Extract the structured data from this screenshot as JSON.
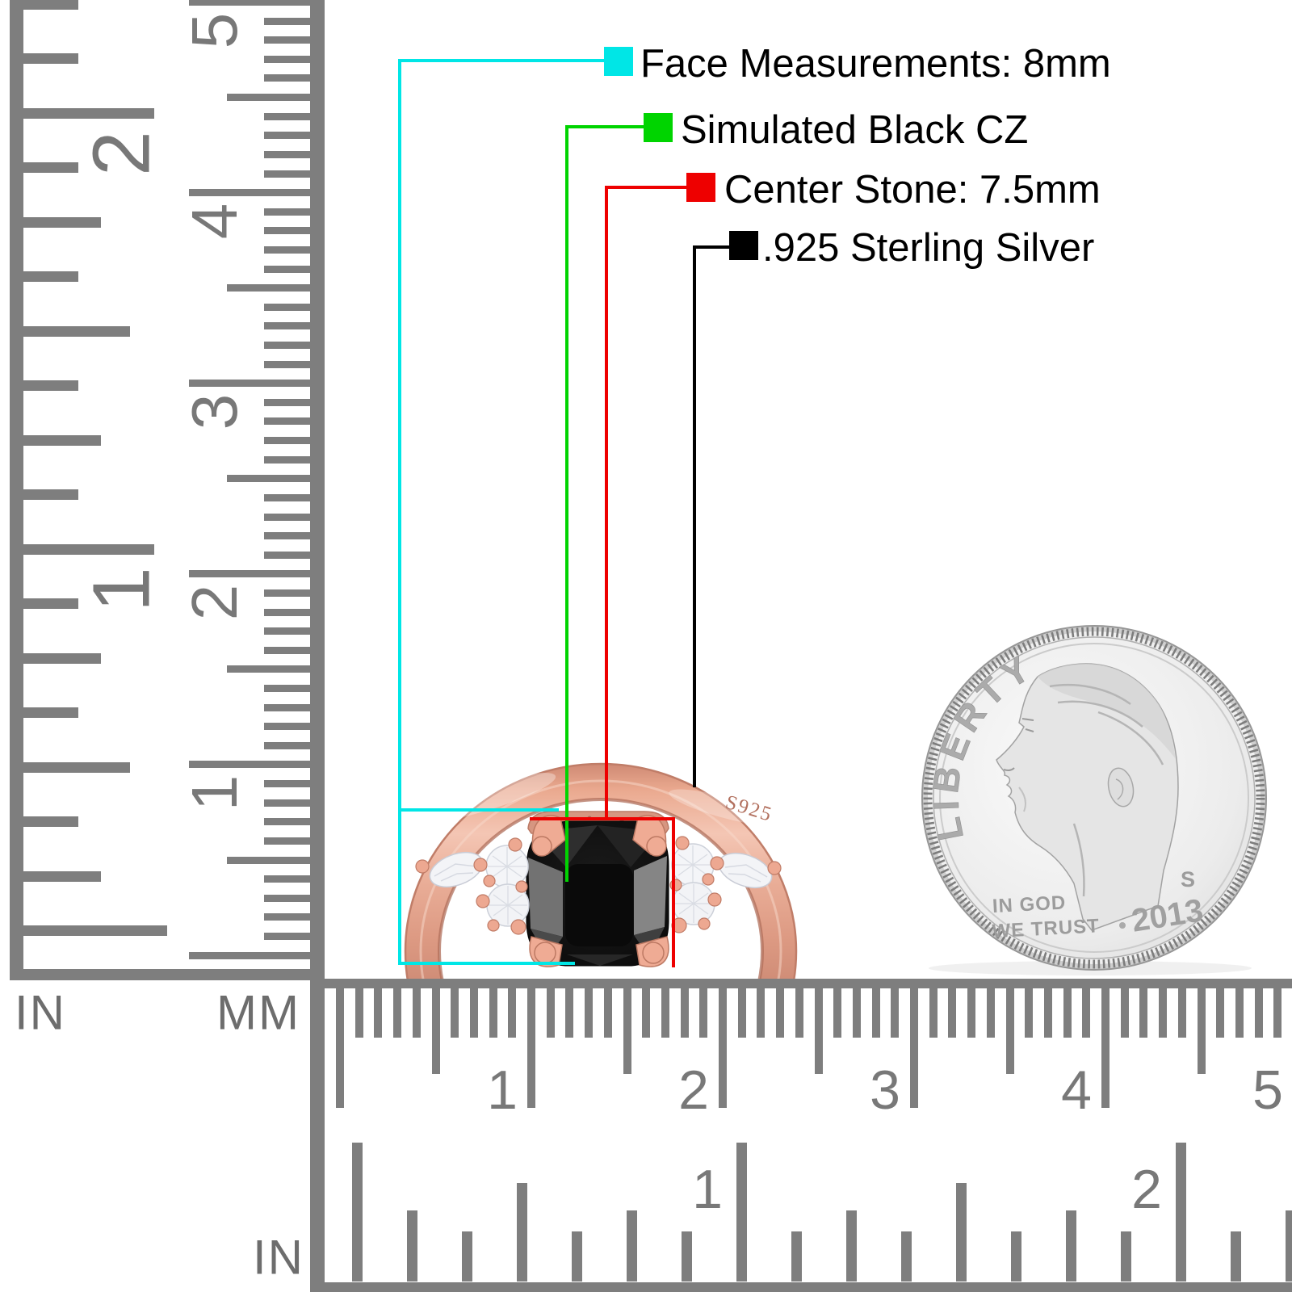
{
  "legend": {
    "items": [
      {
        "label": "Face Measurements: 8mm",
        "color": "#00e6e6"
      },
      {
        "label": "Simulated Black CZ",
        "color": "#00d400"
      },
      {
        "label": "Center Stone: 7.5mm",
        "color": "#ee0000"
      },
      {
        "label": ".925 Sterling Silver",
        "color": "#000000"
      }
    ]
  },
  "rulers": {
    "vertical": {
      "unit_left": "IN",
      "unit_right": "MM",
      "inch_labels": [
        "2",
        "1"
      ],
      "mm_labels": [
        "5",
        "4",
        "3",
        "2",
        "1"
      ]
    },
    "horizontal": {
      "unit": "IN",
      "mm_labels": [
        "1",
        "2",
        "3",
        "4",
        "5"
      ],
      "inch_labels": [
        "1",
        "2"
      ]
    }
  },
  "ring": {
    "engraving": "S925"
  },
  "coin": {
    "legend_top": "LIBERTY",
    "motto_line1": "IN GOD",
    "motto_line2": "WE TRUST",
    "mint_mark": "S",
    "year": "2013"
  }
}
